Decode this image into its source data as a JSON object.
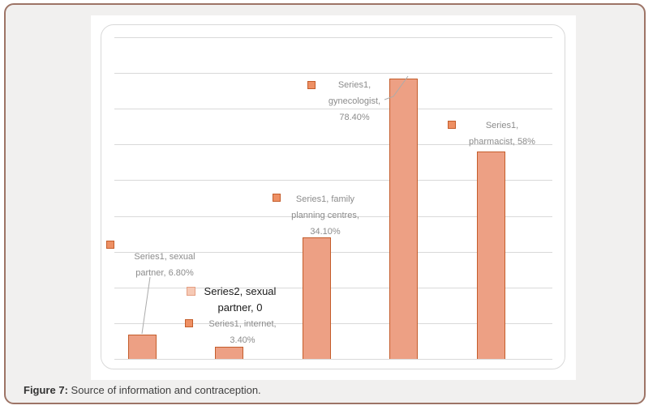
{
  "figure": {
    "caption_prefix": "Figure 7:",
    "caption_text": "Source of information and contraception."
  },
  "chart_data": {
    "type": "bar",
    "title": "",
    "categories": [
      "sexual partner",
      "internet",
      "family planning centres",
      "gynecologist",
      "pharmacist"
    ],
    "series": [
      {
        "name": "Series1",
        "values": [
          6.8,
          3.4,
          34.1,
          78.4,
          58.0
        ]
      },
      {
        "name": "Series2",
        "values": [
          0,
          null,
          null,
          null,
          null
        ]
      }
    ],
    "value_format": "percent",
    "ylim": [
      0,
      90
    ],
    "grid_step": 10,
    "grid": true,
    "axes_visible": false,
    "legend": "none",
    "data_labels": [
      {
        "series": "Series1",
        "category": "sexual partner",
        "value_text": "6.80%",
        "lines": [
          "Series1, sexual",
          "partner, 6.80%"
        ]
      },
      {
        "series": "Series2",
        "category": "sexual partner",
        "value_text": "0",
        "lines": [
          "Series2, sexual",
          "partner, 0"
        ]
      },
      {
        "series": "Series1",
        "category": "internet",
        "value_text": "3.40%",
        "lines": [
          "Series1, internet,",
          "3.40%"
        ]
      },
      {
        "series": "Series1",
        "category": "family planning centres",
        "value_text": "34.10%",
        "lines": [
          "Series1, family",
          "planning centres,",
          "34.10%"
        ]
      },
      {
        "series": "Series1",
        "category": "gynecologist",
        "value_text": "78.40%",
        "lines": [
          "Series1,",
          "gynecologist,",
          "78.40%"
        ]
      },
      {
        "series": "Series1",
        "category": "pharmacist",
        "value_text": "58%",
        "lines": [
          "Series1,",
          "pharmacist, 58%"
        ]
      }
    ],
    "colors": {
      "bar_fill": "#eda084",
      "bar_border": "#c45d2b",
      "series1_marker_fill": "#ee9064",
      "series1_marker_border": "#c45d2b",
      "series2_marker_fill": "#f6c9b5",
      "series2_marker_border": "#e59f83",
      "gridline": "#d9d9d9",
      "label_text": "#8c8c8c",
      "label_text_emphasis": "#1a1a1a",
      "leader_line": "#ababab",
      "panel_border": "#9d7466",
      "panel_bg": "#f1f0ef"
    }
  }
}
